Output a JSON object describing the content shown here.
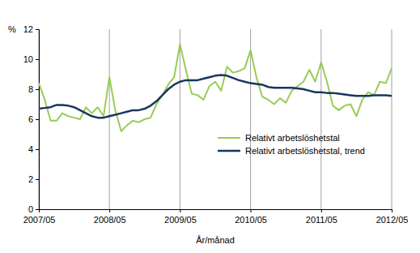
{
  "chart_data": {
    "type": "line",
    "y_label": "%",
    "x_label": "År/månad",
    "categories": [
      "2007/05",
      null,
      null,
      null,
      null,
      null,
      null,
      null,
      null,
      null,
      null,
      null,
      "2008/05",
      null,
      null,
      null,
      null,
      null,
      null,
      null,
      null,
      null,
      null,
      null,
      "2009/05",
      null,
      null,
      null,
      null,
      null,
      null,
      null,
      null,
      null,
      null,
      null,
      "2010/05",
      null,
      null,
      null,
      null,
      null,
      null,
      null,
      null,
      null,
      null,
      null,
      "2011/05",
      null,
      null,
      null,
      null,
      null,
      null,
      null,
      null,
      null,
      null,
      null,
      "2012/05"
    ],
    "series": [
      {
        "name": "Relativt arbetslöshetstal",
        "color": "#99cc55",
        "values": [
          8.4,
          7.3,
          5.9,
          5.9,
          6.4,
          6.2,
          6.1,
          6.0,
          6.8,
          6.4,
          6.8,
          6.2,
          8.8,
          6.6,
          5.2,
          5.6,
          5.9,
          5.8,
          6.0,
          6.1,
          7.0,
          7.6,
          8.3,
          8.8,
          11.0,
          9.3,
          7.7,
          7.6,
          7.3,
          8.2,
          8.5,
          7.9,
          9.5,
          9.1,
          9.2,
          9.4,
          10.6,
          8.8,
          7.5,
          7.3,
          7.0,
          7.4,
          7.1,
          7.9,
          8.2,
          8.5,
          9.3,
          8.5,
          9.8,
          8.5,
          6.9,
          6.6,
          6.9,
          7.0,
          6.2,
          7.3,
          7.8,
          7.6,
          8.5,
          8.4,
          9.4
        ]
      },
      {
        "name": "Relativt arbetslöshetstal, trend",
        "color": "#17375e",
        "values": [
          6.7,
          6.75,
          6.8,
          6.95,
          6.95,
          6.9,
          6.8,
          6.6,
          6.4,
          6.2,
          6.1,
          6.1,
          6.2,
          6.3,
          6.4,
          6.5,
          6.6,
          6.6,
          6.7,
          6.9,
          7.2,
          7.6,
          8.0,
          8.3,
          8.5,
          8.6,
          8.6,
          8.6,
          8.7,
          8.8,
          8.9,
          8.95,
          8.9,
          8.75,
          8.6,
          8.5,
          8.4,
          8.35,
          8.3,
          8.15,
          8.1,
          8.1,
          8.1,
          8.1,
          8.05,
          8.0,
          7.9,
          7.8,
          7.8,
          7.75,
          7.75,
          7.7,
          7.65,
          7.6,
          7.55,
          7.55,
          7.55,
          7.6,
          7.6,
          7.6,
          7.55
        ]
      }
    ],
    "ylim": [
      0,
      12
    ],
    "yticks": [
      0,
      2,
      4,
      6,
      8,
      10,
      12
    ],
    "grid": true,
    "legend": "lower right"
  }
}
